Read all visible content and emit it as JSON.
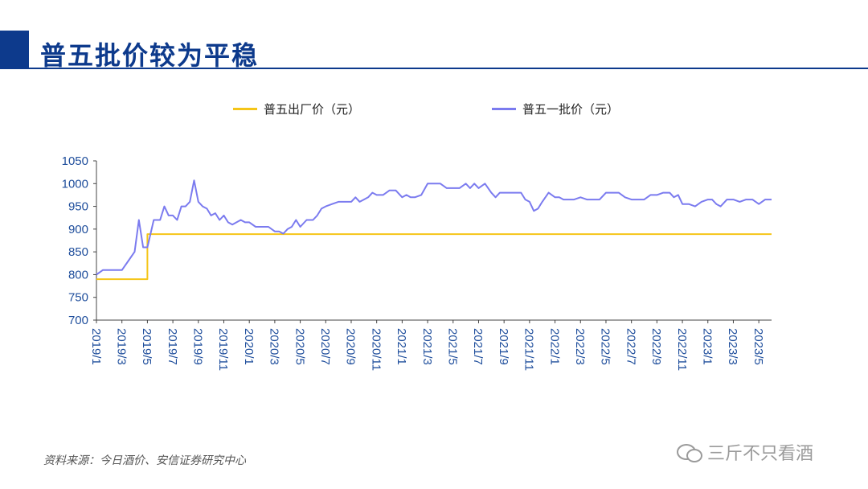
{
  "page": {
    "title": "普五批价较为平稳",
    "source": "资料来源：今日酒价、安信证券研究中心",
    "watermark": "三斤不只看酒"
  },
  "colors": {
    "title": "#0d3a8c",
    "factory_series": "#f5c518",
    "wholesale_series": "#7b7bef",
    "axis_text": "#1f4e9c"
  },
  "icons": {
    "watermark": "wechat-icon"
  },
  "chart_data": {
    "type": "line",
    "title": "",
    "xlabel": "",
    "ylabel": "",
    "ylim": [
      700,
      1050
    ],
    "yticks": [
      700,
      750,
      800,
      850,
      900,
      950,
      1000,
      1050
    ],
    "x_range": [
      "2019/1",
      "2023/6"
    ],
    "xticks": [
      "2019/1",
      "2019/3",
      "2019/5",
      "2019/7",
      "2019/9",
      "2019/11",
      "2020/1",
      "2020/3",
      "2020/5",
      "2020/7",
      "2020/9",
      "2020/11",
      "2021/1",
      "2021/3",
      "2021/5",
      "2021/7",
      "2021/9",
      "2021/11",
      "2022/1",
      "2022/3",
      "2022/5",
      "2022/7",
      "2022/9",
      "2022/11",
      "2023/1",
      "2023/3",
      "2023/5"
    ],
    "grid": false,
    "legend_position": "top",
    "series": [
      {
        "name": "普五出厂价（元）",
        "points": [
          [
            "2019/1",
            790
          ],
          [
            "2019/5",
            790
          ],
          [
            "2019/5",
            889
          ],
          [
            "2023/6",
            889
          ]
        ]
      },
      {
        "name": "普五一批价（元）",
        "points": [
          [
            "2019/1",
            800
          ],
          [
            "2019/1",
            810
          ],
          [
            "2019/2",
            810
          ],
          [
            "2019/3",
            810
          ],
          [
            "2019/3",
            830
          ],
          [
            "2019/4",
            850
          ],
          [
            "2019/4",
            920
          ],
          [
            "2019/4",
            860
          ],
          [
            "2019/5",
            860
          ],
          [
            "2019/5",
            920
          ],
          [
            "2019/6",
            920
          ],
          [
            "2019/6",
            950
          ],
          [
            "2019/6",
            930
          ],
          [
            "2019/7",
            930
          ],
          [
            "2019/7",
            920
          ],
          [
            "2019/7",
            950
          ],
          [
            "2019/8",
            950
          ],
          [
            "2019/8",
            960
          ],
          [
            "2019/8",
            1007
          ],
          [
            "2019/9",
            960
          ],
          [
            "2019/9",
            950
          ],
          [
            "2019/9",
            945
          ],
          [
            "2019/10",
            930
          ],
          [
            "2019/10",
            935
          ],
          [
            "2019/10",
            920
          ],
          [
            "2019/11",
            930
          ],
          [
            "2019/11",
            915
          ],
          [
            "2019/11",
            910
          ],
          [
            "2019/12",
            915
          ],
          [
            "2019/12",
            920
          ],
          [
            "2019/12",
            915
          ],
          [
            "2020/1",
            915
          ],
          [
            "2020/1",
            905
          ],
          [
            "2020/2",
            905
          ],
          [
            "2020/2",
            905
          ],
          [
            "2020/3",
            895
          ],
          [
            "2020/3",
            895
          ],
          [
            "2020/3",
            890
          ],
          [
            "2020/4",
            900
          ],
          [
            "2020/4",
            905
          ],
          [
            "2020/4",
            920
          ],
          [
            "2020/5",
            905
          ],
          [
            "2020/5",
            920
          ],
          [
            "2020/6",
            920
          ],
          [
            "2020/6",
            930
          ],
          [
            "2020/6",
            945
          ],
          [
            "2020/7",
            950
          ],
          [
            "2020/7",
            955
          ],
          [
            "2020/8",
            960
          ],
          [
            "2020/8",
            960
          ],
          [
            "2020/9",
            960
          ],
          [
            "2020/9",
            970
          ],
          [
            "2020/9",
            960
          ],
          [
            "2020/10",
            965
          ],
          [
            "2020/10",
            970
          ],
          [
            "2020/10",
            980
          ],
          [
            "2020/11",
            975
          ],
          [
            "2020/11",
            975
          ],
          [
            "2020/12",
            985
          ],
          [
            "2020/12",
            985
          ],
          [
            "2021/1",
            970
          ],
          [
            "2021/1",
            975
          ],
          [
            "2021/1",
            970
          ],
          [
            "2021/2",
            970
          ],
          [
            "2021/2",
            975
          ],
          [
            "2021/3",
            1000
          ],
          [
            "2021/3",
            1000
          ],
          [
            "2021/4",
            1000
          ],
          [
            "2021/4",
            990
          ],
          [
            "2021/5",
            990
          ],
          [
            "2021/5",
            990
          ],
          [
            "2021/6",
            1000
          ],
          [
            "2021/6",
            990
          ],
          [
            "2021/6",
            1000
          ],
          [
            "2021/7",
            990
          ],
          [
            "2021/7",
            1000
          ],
          [
            "2021/8",
            980
          ],
          [
            "2021/8",
            970
          ],
          [
            "2021/8",
            980
          ],
          [
            "2021/9",
            980
          ],
          [
            "2021/9",
            980
          ],
          [
            "2021/10",
            980
          ],
          [
            "2021/10",
            980
          ],
          [
            "2021/10",
            965
          ],
          [
            "2021/11",
            960
          ],
          [
            "2021/11",
            940
          ],
          [
            "2021/11",
            945
          ],
          [
            "2021/12",
            960
          ],
          [
            "2021/12",
            980
          ],
          [
            "2022/1",
            970
          ],
          [
            "2022/1",
            970
          ],
          [
            "2022/1",
            965
          ],
          [
            "2022/2",
            965
          ],
          [
            "2022/2",
            965
          ],
          [
            "2022/3",
            970
          ],
          [
            "2022/3",
            965
          ],
          [
            "2022/4",
            965
          ],
          [
            "2022/4",
            965
          ],
          [
            "2022/5",
            980
          ],
          [
            "2022/5",
            980
          ],
          [
            "2022/6",
            980
          ],
          [
            "2022/6",
            970
          ],
          [
            "2022/7",
            965
          ],
          [
            "2022/7",
            965
          ],
          [
            "2022/8",
            965
          ],
          [
            "2022/8",
            975
          ],
          [
            "2022/9",
            975
          ],
          [
            "2022/9",
            980
          ],
          [
            "2022/10",
            980
          ],
          [
            "2022/10",
            970
          ],
          [
            "2022/10",
            975
          ],
          [
            "2022/11",
            955
          ],
          [
            "2022/11",
            955
          ],
          [
            "2022/12",
            950
          ],
          [
            "2022/12",
            960
          ],
          [
            "2023/1",
            965
          ],
          [
            "2023/1",
            965
          ],
          [
            "2023/1",
            955
          ],
          [
            "2023/2",
            950
          ],
          [
            "2023/2",
            965
          ],
          [
            "2023/3",
            965
          ],
          [
            "2023/3",
            960
          ],
          [
            "2023/4",
            965
          ],
          [
            "2023/4",
            965
          ],
          [
            "2023/5",
            955
          ],
          [
            "2023/5",
            965
          ],
          [
            "2023/6",
            965
          ]
        ]
      }
    ]
  }
}
